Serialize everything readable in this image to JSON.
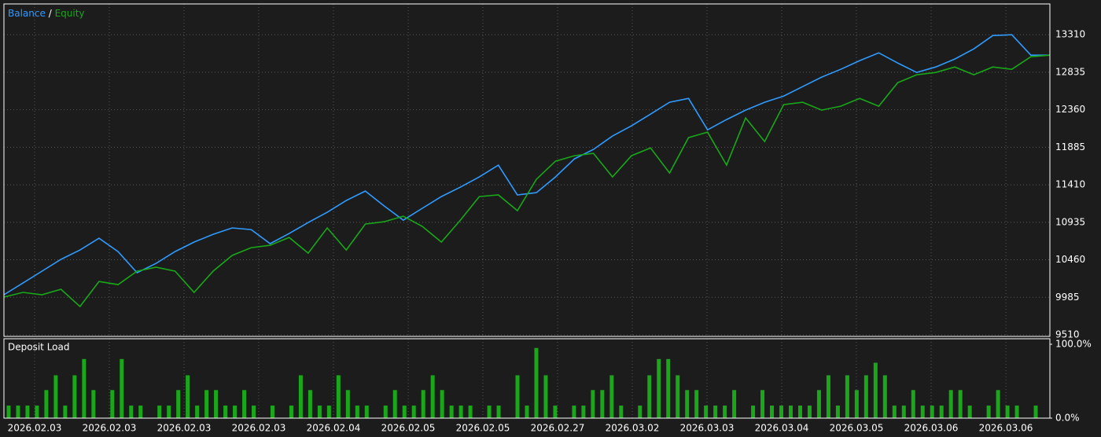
{
  "chart_data": [
    {
      "type": "line",
      "title_parts": [
        "Balance",
        "/",
        "Equity"
      ],
      "x_labels": [
        "2026.02.03",
        "2026.02.03",
        "2026.02.03",
        "2026.02.03",
        "2026.02.04",
        "2026.02.05",
        "2026.02.05",
        "2026.02.27",
        "2026.03.02",
        "2026.03.03",
        "2026.03.04",
        "2026.03.05",
        "2026.03.06",
        "2026.03.06"
      ],
      "ylim": [
        9490,
        13700
      ],
      "yticks": [
        9510,
        9985,
        10460,
        10935,
        11410,
        11885,
        12360,
        12835,
        13310
      ],
      "grid": true,
      "series": [
        {
          "name": "Balance",
          "color": "#2f9bff",
          "values": [
            10017,
            10166,
            10316,
            10465,
            10584,
            10733,
            10564,
            10296,
            10415,
            10564,
            10684,
            10783,
            10863,
            10843,
            10664,
            10793,
            10932,
            11062,
            11211,
            11330,
            11141,
            10962,
            11112,
            11261,
            11380,
            11509,
            11659,
            11281,
            11310,
            11509,
            11738,
            11858,
            12027,
            12156,
            12305,
            12455,
            12504,
            12106,
            12236,
            12355,
            12455,
            12534,
            12653,
            12773,
            12872,
            12982,
            13081,
            12952,
            12832,
            12902,
            13002,
            13131,
            13300,
            13310,
            13051,
            13051
          ]
        },
        {
          "name": "Equity",
          "color": "#18a818",
          "values": [
            9988,
            10047,
            10017,
            10087,
            9868,
            10186,
            10146,
            10316,
            10366,
            10316,
            10047,
            10316,
            10515,
            10614,
            10644,
            10743,
            10544,
            10863,
            10584,
            10912,
            10942,
            11012,
            10883,
            10684,
            10962,
            11261,
            11281,
            11082,
            11480,
            11708,
            11778,
            11808,
            11509,
            11778,
            11877,
            11559,
            12007,
            12077,
            11659,
            12256,
            11957,
            12425,
            12455,
            12355,
            12405,
            12504,
            12405,
            12703,
            12803,
            12832,
            12902,
            12803,
            12902,
            12872,
            13031,
            13051
          ]
        }
      ]
    },
    {
      "type": "bar",
      "title": "Deposit Load",
      "ylim": [
        0,
        100
      ],
      "yticks": [
        {
          "value": 0,
          "label": "0.0%"
        },
        {
          "value": 100,
          "label": "100.0%"
        }
      ],
      "color": "#1aa81a",
      "values": [
        17,
        17,
        17,
        17,
        38,
        58,
        17,
        58,
        80,
        38,
        0,
        38,
        80,
        17,
        17,
        0,
        17,
        17,
        38,
        58,
        17,
        38,
        38,
        17,
        17,
        38,
        17,
        0,
        17,
        0,
        17,
        58,
        38,
        17,
        17,
        58,
        38,
        17,
        17,
        0,
        17,
        38,
        17,
        17,
        38,
        58,
        38,
        17,
        17,
        17,
        0,
        17,
        17,
        0,
        58,
        17,
        95,
        58,
        17,
        0,
        17,
        17,
        38,
        38,
        58,
        17,
        0,
        17,
        58,
        80,
        80,
        58,
        38,
        38,
        17,
        17,
        17,
        38,
        0,
        17,
        38,
        17,
        17,
        17,
        17,
        17,
        38,
        58,
        17,
        58,
        38,
        58,
        75,
        58,
        17,
        17,
        38,
        17,
        17,
        17,
        38,
        38,
        17,
        0,
        17,
        38,
        17,
        17,
        0,
        17,
        0
      ]
    }
  ]
}
